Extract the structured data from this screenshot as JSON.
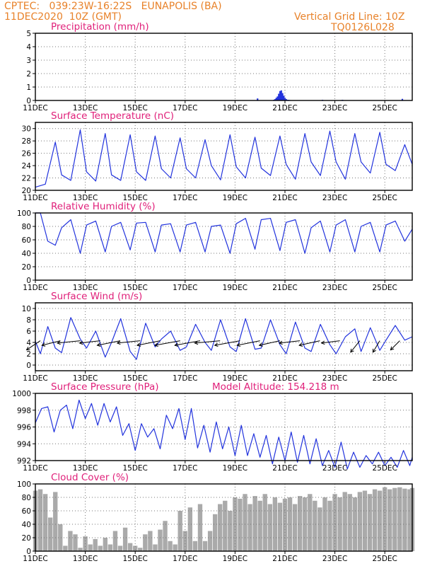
{
  "header": {
    "left_line1": "CPTEC:   039:23W-16:22S   EUNAPOLIS (BA)",
    "left_line2": "11DEC2020  10Z (GMT)",
    "right_line1": "Vertical Grid Line: 10Z",
    "right_line2": "TQ0126L028"
  },
  "colors": {
    "header": "#e8822a",
    "title": "#e0207a",
    "line": "#2233dd",
    "cloud": "#aaaaaa",
    "arrow": "#000000"
  },
  "x_tick_labels": [
    "11DEC",
    "13DEC",
    "15DEC",
    "17DEC",
    "19DEC",
    "21DEC",
    "23DEC",
    "25DEC"
  ],
  "x_tick_days": [
    11,
    13,
    15,
    17,
    19,
    21,
    23,
    25
  ],
  "x_range_days": [
    11,
    26.1
  ],
  "chart_data": [
    {
      "type": "bar",
      "title": "Precipitation (mm/h)",
      "ylim": [
        0,
        5
      ],
      "yticks": [
        0,
        1,
        2,
        3,
        4,
        5
      ],
      "grid": true,
      "x_day": [
        19.9,
        20.55,
        20.6,
        20.65,
        20.7,
        20.75,
        20.8,
        20.85,
        20.9,
        20.95,
        21.0,
        21.05,
        21.1,
        21.15,
        21.2,
        22.5,
        23.3,
        25.7
      ],
      "values": [
        0.15,
        0.05,
        0.1,
        0.2,
        0.3,
        0.5,
        0.7,
        0.75,
        0.55,
        0.35,
        0.2,
        0.1,
        0.05,
        0.05,
        0.03,
        0.05,
        0.05,
        0.12
      ]
    },
    {
      "type": "line",
      "title": "Surface Temperature (nC)",
      "ylim": [
        20,
        31
      ],
      "yticks": [
        20,
        22,
        24,
        26,
        28,
        30
      ],
      "grid": true,
      "x_day": [
        11.0,
        11.4,
        11.8,
        12.05,
        12.42,
        12.8,
        13.05,
        13.42,
        13.8,
        14.05,
        14.42,
        14.8,
        15.05,
        15.42,
        15.8,
        16.05,
        16.42,
        16.8,
        17.05,
        17.42,
        17.8,
        18.05,
        18.42,
        18.8,
        19.05,
        19.42,
        19.8,
        20.05,
        20.42,
        20.8,
        21.05,
        21.42,
        21.8,
        22.05,
        22.42,
        22.8,
        23.05,
        23.42,
        23.8,
        24.05,
        24.42,
        24.8,
        25.05,
        25.42,
        25.8,
        26.1
      ],
      "values": [
        20.5,
        21.0,
        27.8,
        22.5,
        21.6,
        29.8,
        23.0,
        21.5,
        29.2,
        22.5,
        21.6,
        29.0,
        23.0,
        21.6,
        28.8,
        23.5,
        22.0,
        28.5,
        23.5,
        22.0,
        28.2,
        24.0,
        21.7,
        29.0,
        23.8,
        22.0,
        28.6,
        23.6,
        22.4,
        28.8,
        24.2,
        21.8,
        29.2,
        24.6,
        22.4,
        29.6,
        24.6,
        21.8,
        29.2,
        24.6,
        22.8,
        29.4,
        24.2,
        23.2,
        27.4,
        24.2
      ]
    },
    {
      "type": "line",
      "title": "Relative Humidity (%)",
      "ylim": [
        0,
        100
      ],
      "yticks": [
        0,
        20,
        40,
        60,
        80,
        100
      ],
      "grid": true,
      "x_day": [
        11.0,
        11.2,
        11.5,
        11.8,
        12.05,
        12.42,
        12.8,
        13.05,
        13.42,
        13.8,
        14.05,
        14.42,
        14.8,
        15.05,
        15.42,
        15.8,
        16.05,
        16.42,
        16.8,
        17.05,
        17.42,
        17.8,
        18.05,
        18.42,
        18.8,
        19.05,
        19.42,
        19.8,
        20.05,
        20.42,
        20.8,
        21.05,
        21.42,
        21.8,
        22.05,
        22.42,
        22.8,
        23.05,
        23.42,
        23.8,
        24.05,
        24.42,
        24.8,
        25.05,
        25.42,
        25.8,
        26.1
      ],
      "values": [
        100,
        100,
        58,
        52,
        78,
        90,
        40,
        82,
        88,
        42,
        80,
        86,
        45,
        85,
        86,
        42,
        82,
        84,
        42,
        82,
        86,
        42,
        80,
        82,
        40,
        84,
        92,
        46,
        90,
        92,
        44,
        86,
        90,
        40,
        78,
        88,
        42,
        82,
        90,
        42,
        80,
        86,
        42,
        82,
        88,
        58,
        76
      ]
    },
    {
      "type": "line",
      "title": "Surface Wind (m/s)",
      "ylim": [
        -1,
        11
      ],
      "yticks": [
        0,
        2,
        4,
        6,
        8,
        10
      ],
      "grid": true,
      "x_day": [
        11.0,
        11.2,
        11.5,
        11.8,
        12.05,
        12.42,
        12.8,
        13.05,
        13.42,
        13.8,
        14.05,
        14.42,
        14.8,
        15.05,
        15.42,
        15.8,
        16.05,
        16.42,
        16.8,
        17.05,
        17.42,
        17.8,
        18.05,
        18.42,
        18.8,
        19.05,
        19.42,
        19.8,
        20.05,
        20.42,
        20.8,
        21.05,
        21.42,
        21.8,
        22.05,
        22.42,
        22.8,
        23.05,
        23.42,
        23.8,
        24.05,
        24.42,
        24.8,
        25.05,
        25.42,
        25.8,
        26.1
      ],
      "values": [
        4.2,
        2.0,
        6.8,
        3.0,
        2.2,
        8.4,
        4.6,
        3.0,
        6.0,
        1.4,
        4.0,
        8.2,
        2.4,
        1.0,
        7.4,
        3.2,
        4.6,
        6.0,
        2.6,
        3.2,
        7.2,
        4.0,
        2.6,
        8.0,
        3.2,
        2.4,
        8.2,
        2.8,
        3.0,
        8.0,
        3.6,
        2.0,
        7.6,
        3.0,
        2.4,
        7.2,
        3.6,
        2.0,
        5.0,
        6.4,
        2.4,
        6.6,
        2.6,
        4.4,
        7.0,
        4.4,
        5.0
      ],
      "wind_arrows": {
        "x_day": [
          11.2,
          12.0,
          12.8,
          13.6,
          14.4,
          15.2,
          16.0,
          16.8,
          17.6,
          18.4,
          19.2,
          20.0,
          20.8,
          21.6,
          22.4,
          23.2,
          24.0,
          24.8,
          25.6
        ],
        "u": [
          -3,
          -4,
          -5,
          -4.5,
          -5,
          -5,
          -5,
          -5.5,
          -5.5,
          -5.5,
          -5.5,
          -5,
          -4.5,
          -4.5,
          -4.5,
          -4,
          -2,
          -1.5,
          -2
        ],
        "v": [
          -2,
          -1,
          -0.5,
          -0.5,
          -1,
          -0.5,
          -1,
          -1,
          -1,
          -0.5,
          -1,
          -1,
          -1,
          -0.5,
          -1,
          -0.5,
          -2.5,
          -2.5,
          -2
        ]
      }
    },
    {
      "type": "line",
      "title": "Surface Pressure (hPa)",
      "annotation": "Model Altitude: 154.218 m",
      "ylim": [
        992,
        1000
      ],
      "yticks": [
        992,
        994,
        996,
        998,
        1000
      ],
      "grid": true,
      "x_day": [
        11.0,
        11.25,
        11.5,
        11.75,
        12.0,
        12.25,
        12.5,
        12.75,
        13.0,
        13.25,
        13.5,
        13.75,
        14.0,
        14.25,
        14.5,
        14.75,
        15.0,
        15.25,
        15.5,
        15.75,
        16.0,
        16.25,
        16.5,
        16.75,
        17.0,
        17.25,
        17.5,
        17.75,
        18.0,
        18.25,
        18.5,
        18.75,
        19.0,
        19.25,
        19.5,
        19.75,
        20.0,
        20.25,
        20.5,
        20.75,
        21.0,
        21.25,
        21.5,
        21.75,
        22.0,
        22.25,
        22.5,
        22.75,
        23.0,
        23.25,
        23.5,
        23.75,
        24.0,
        24.25,
        24.5,
        24.75,
        25.0,
        25.25,
        25.5,
        25.75,
        26.0,
        26.1
      ],
      "values": [
        996.5,
        998.2,
        998.4,
        995.4,
        998.0,
        998.6,
        995.8,
        999.2,
        997.0,
        998.8,
        996.2,
        998.8,
        996.6,
        998.4,
        995.0,
        996.4,
        993.2,
        996.4,
        994.8,
        995.8,
        993.4,
        997.4,
        995.8,
        998.2,
        994.5,
        998.2,
        993.5,
        996.2,
        993.0,
        996.6,
        993.4,
        996.0,
        992.6,
        996.2,
        992.6,
        995.2,
        992.4,
        995.0,
        991.6,
        994.8,
        992.0,
        995.4,
        991.8,
        995.0,
        991.6,
        994.6,
        991.4,
        993.2,
        991.2,
        994.2,
        991.0,
        993.0,
        991.2,
        992.6,
        991.6,
        993.0,
        991.4,
        992.4,
        991.2,
        993.2,
        991.4,
        992.4
      ]
    },
    {
      "type": "area",
      "title": "Cloud Cover (%)",
      "ylim": [
        0,
        100
      ],
      "yticks": [
        0,
        20,
        40,
        60,
        80,
        100
      ],
      "grid": true,
      "x_day": [
        11.0,
        11.2,
        11.4,
        11.6,
        11.8,
        12.0,
        12.2,
        12.4,
        12.6,
        12.8,
        13.0,
        13.2,
        13.4,
        13.6,
        13.8,
        14.0,
        14.2,
        14.4,
        14.6,
        14.8,
        15.0,
        15.2,
        15.4,
        15.6,
        15.8,
        16.0,
        16.2,
        16.4,
        16.6,
        16.8,
        17.0,
        17.2,
        17.4,
        17.6,
        17.8,
        18.0,
        18.2,
        18.4,
        18.6,
        18.8,
        19.0,
        19.2,
        19.4,
        19.6,
        19.8,
        20.0,
        20.2,
        20.4,
        20.6,
        20.8,
        21.0,
        21.2,
        21.4,
        21.6,
        21.8,
        22.0,
        22.2,
        22.4,
        22.6,
        22.8,
        23.0,
        23.2,
        23.4,
        23.6,
        23.8,
        24.0,
        24.2,
        24.4,
        24.6,
        24.8,
        25.0,
        25.2,
        25.4,
        25.6,
        25.8,
        26.0,
        26.1
      ],
      "values": [
        90,
        92,
        85,
        50,
        88,
        40,
        8,
        30,
        25,
        5,
        22,
        10,
        18,
        8,
        20,
        10,
        30,
        8,
        35,
        12,
        8,
        5,
        25,
        30,
        10,
        32,
        45,
        15,
        10,
        60,
        30,
        65,
        15,
        70,
        15,
        30,
        55,
        70,
        75,
        60,
        80,
        78,
        85,
        70,
        82,
        75,
        85,
        70,
        80,
        72,
        78,
        80,
        70,
        82,
        80,
        85,
        75,
        65,
        80,
        75,
        85,
        80,
        88,
        85,
        80,
        88,
        90,
        85,
        92,
        90,
        95,
        92,
        94,
        95,
        93,
        92,
        94
      ]
    }
  ]
}
